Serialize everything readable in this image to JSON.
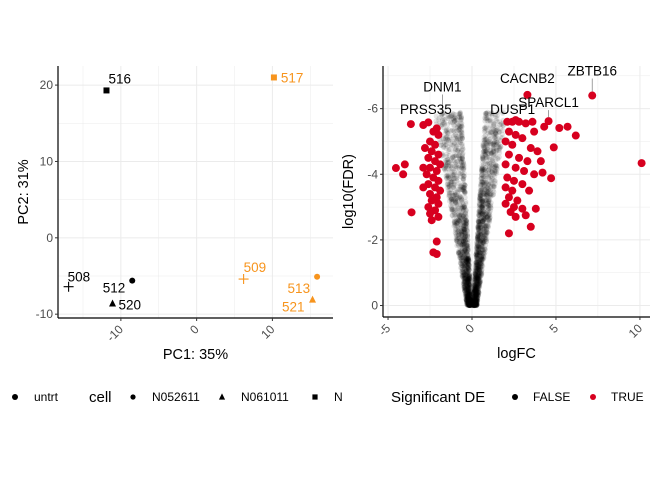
{
  "colors": {
    "untrt": "#000000",
    "trt": "#f7941d",
    "de_true": "#d7001f",
    "de_false": "#000000"
  },
  "chart_data": [
    {
      "type": "scatter",
      "xlabel": "PC1: 35%",
      "ylabel": "PC2: 31%",
      "xlim": [
        -18.3,
        18.0
      ],
      "ylim": [
        -10.5,
        22.5
      ],
      "xticks": [
        "-10",
        "0",
        "10"
      ],
      "xtick_values": [
        -10,
        0,
        10
      ],
      "yticks": [
        "-10",
        "0",
        "10",
        "20"
      ],
      "ytick_values": [
        -10,
        0,
        10,
        20
      ],
      "grid": true,
      "legend_position": "bottom",
      "legend": {
        "dex_items": [
          {
            "label": "untrt",
            "shape": "circle",
            "color": "#000000"
          }
        ],
        "cell_title": "cell",
        "cell_items": [
          {
            "label": "N052611",
            "shape": "circle"
          },
          {
            "label": "N061011",
            "shape": "triangle"
          },
          {
            "label": "N",
            "shape": "square"
          }
        ]
      },
      "points": [
        {
          "label": "516",
          "x": -11.9,
          "y": 19.3,
          "shape": "square",
          "group": "untrt"
        },
        {
          "label": "517",
          "x": 10.2,
          "y": 21.0,
          "shape": "square",
          "group": "trt"
        },
        {
          "label": "508",
          "x": -16.9,
          "y": -6.4,
          "shape": "plus",
          "group": "untrt"
        },
        {
          "label": "512",
          "x": -8.5,
          "y": -5.6,
          "shape": "circle",
          "group": "untrt"
        },
        {
          "label": "520",
          "x": -11.1,
          "y": -8.6,
          "shape": "triangle",
          "group": "untrt"
        },
        {
          "label": "509",
          "x": 6.2,
          "y": -5.4,
          "shape": "plus",
          "group": "trt"
        },
        {
          "label": "513",
          "x": 15.9,
          "y": -5.1,
          "shape": "circle",
          "group": "trt"
        },
        {
          "label": "521",
          "x": 15.3,
          "y": -8.1,
          "shape": "triangle",
          "group": "trt"
        }
      ]
    },
    {
      "type": "scatter",
      "xlabel": "logFC",
      "ylabel": "log10(FDR)",
      "xlim": [
        -5.3,
        10.6
      ],
      "ylim": [
        -7.3,
        0.35
      ],
      "y_reversed": true,
      "xticks": [
        "-5",
        "0",
        "5",
        "10"
      ],
      "xtick_values": [
        -5,
        0,
        5,
        10
      ],
      "yticks": [
        "-6",
        "-4",
        "-2",
        "0"
      ],
      "ytick_values": [
        -6,
        -4,
        -2,
        0
      ],
      "grid": true,
      "legend_position": "bottom",
      "legend": {
        "title": "Significant DE",
        "items": [
          {
            "label": "FALSE",
            "color": "#000000"
          },
          {
            "label": "TRUE",
            "color": "#d7001f"
          }
        ]
      },
      "labeled_genes": [
        {
          "gene": "ZBTB16",
          "logFC": 7.16,
          "log10FDR": -6.4,
          "significant": true
        },
        {
          "gene": "CACNB2",
          "logFC": 3.3,
          "log10FDR": -6.42,
          "significant": true
        },
        {
          "gene": "SPARCL1",
          "logFC": 4.56,
          "log10FDR": -5.62,
          "significant": true
        },
        {
          "gene": "DUSP1",
          "logFC": 2.6,
          "log10FDR": -5.65,
          "significant": true
        },
        {
          "gene": "DNM1",
          "logFC": -1.76,
          "log10FDR": -5.64,
          "significant": false
        },
        {
          "gene": "PRSS35",
          "logFC": -3.64,
          "log10FDR": -5.53,
          "significant": true
        }
      ],
      "significant_points": [
        [
          -2.9,
          -5.5
        ],
        [
          -2.6,
          -5.58
        ],
        [
          -2.3,
          -5.3
        ],
        [
          -2.1,
          -5.4
        ],
        [
          -2.0,
          -5.2
        ],
        [
          -2.5,
          -5.0
        ],
        [
          -2.2,
          -4.9
        ],
        [
          -2.8,
          -4.8
        ],
        [
          -2.4,
          -4.7
        ],
        [
          -2.0,
          -4.6
        ],
        [
          -2.6,
          -4.5
        ],
        [
          -2.2,
          -4.4
        ],
        [
          -1.9,
          -4.3
        ],
        [
          -2.5,
          -4.2
        ],
        [
          -2.1,
          -4.1
        ],
        [
          -2.7,
          -4.0
        ],
        [
          -2.3,
          -3.9
        ],
        [
          -2.0,
          -3.8
        ],
        [
          -2.6,
          -3.7
        ],
        [
          -2.2,
          -3.6
        ],
        [
          -1.9,
          -3.5
        ],
        [
          -2.5,
          -3.4
        ],
        [
          -2.1,
          -3.3
        ],
        [
          -2.4,
          -3.2
        ],
        [
          -2.0,
          -3.1
        ],
        [
          -2.6,
          -3.0
        ],
        [
          -2.2,
          -2.9
        ],
        [
          -2.5,
          -2.8
        ],
        [
          -2.0,
          -2.7
        ],
        [
          -4.53,
          -4.19
        ],
        [
          -4.0,
          -4.3
        ],
        [
          -4.1,
          -4.0
        ],
        [
          -3.6,
          -2.84
        ],
        [
          -2.1,
          -1.95
        ],
        [
          -2.3,
          -1.62
        ],
        [
          -2.1,
          -1.57
        ],
        [
          -2.4,
          -2.6
        ],
        [
          -2.9,
          -4.2
        ],
        [
          -2.9,
          -3.6
        ],
        [
          10.1,
          -4.34
        ],
        [
          6.18,
          -5.18
        ],
        [
          5.69,
          -5.45
        ],
        [
          5.2,
          -5.41
        ],
        [
          4.87,
          -4.82
        ],
        [
          4.71,
          -3.88
        ],
        [
          2.1,
          -5.6
        ],
        [
          2.4,
          -5.6
        ],
        [
          2.8,
          -5.6
        ],
        [
          3.2,
          -5.55
        ],
        [
          3.6,
          -5.6
        ],
        [
          4.3,
          -5.45
        ],
        [
          3.7,
          -5.3
        ],
        [
          2.2,
          -5.3
        ],
        [
          2.6,
          -5.2
        ],
        [
          3.0,
          -5.1
        ],
        [
          2.0,
          -5.0
        ],
        [
          2.4,
          -4.9
        ],
        [
          3.5,
          -4.8
        ],
        [
          3.9,
          -4.7
        ],
        [
          2.2,
          -4.6
        ],
        [
          2.8,
          -4.5
        ],
        [
          3.3,
          -4.4
        ],
        [
          4.1,
          -4.4
        ],
        [
          2.0,
          -4.3
        ],
        [
          2.6,
          -4.2
        ],
        [
          3.1,
          -4.1
        ],
        [
          3.7,
          -4.0
        ],
        [
          4.2,
          -4.05
        ],
        [
          2.1,
          -3.9
        ],
        [
          2.5,
          -3.8
        ],
        [
          3.0,
          -3.7
        ],
        [
          2.0,
          -3.6
        ],
        [
          2.4,
          -3.5
        ],
        [
          3.4,
          -3.5
        ],
        [
          2.2,
          -3.3
        ],
        [
          2.7,
          -3.2
        ],
        [
          2.0,
          -3.1
        ],
        [
          2.5,
          -3.0
        ],
        [
          3.0,
          -2.95
        ],
        [
          2.3,
          -2.85
        ],
        [
          3.2,
          -2.75
        ],
        [
          3.8,
          -2.95
        ],
        [
          2.6,
          -2.7
        ],
        [
          3.5,
          -2.4
        ],
        [
          2.2,
          -2.2
        ]
      ]
    }
  ]
}
